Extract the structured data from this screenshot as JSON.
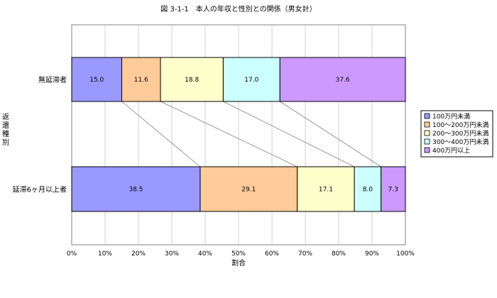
{
  "chart_data": {
    "type": "bar",
    "orientation": "horizontal",
    "stacked": "percent",
    "title": "図 3-1-1　本人の年収と性別との関係（男女計）",
    "xlabel": "割合",
    "ylabel": "返還種別",
    "xlim": [
      0,
      100
    ],
    "x_ticks": [
      "0%",
      "10%",
      "20%",
      "30%",
      "40%",
      "50%",
      "60%",
      "70%",
      "80%",
      "90%",
      "100%"
    ],
    "grid": true,
    "legend_position": "right",
    "categories": [
      "無延滞者",
      "延滞6ヶ月以上者"
    ],
    "series": [
      {
        "name": "100万円未満",
        "color": "#9999ff",
        "values": [
          15.0,
          38.5
        ]
      },
      {
        "name": "100～200万円未満",
        "color": "#ffcc99",
        "values": [
          11.6,
          29.1
        ]
      },
      {
        "name": "200～300万円未満",
        "color": "#ffffcc",
        "values": [
          18.8,
          17.1
        ]
      },
      {
        "name": "300～400万円未満",
        "color": "#ccffff",
        "values": [
          17.0,
          8.0
        ]
      },
      {
        "name": "400万円以上",
        "color": "#cc99ff",
        "values": [
          37.6,
          7.3
        ]
      }
    ]
  }
}
